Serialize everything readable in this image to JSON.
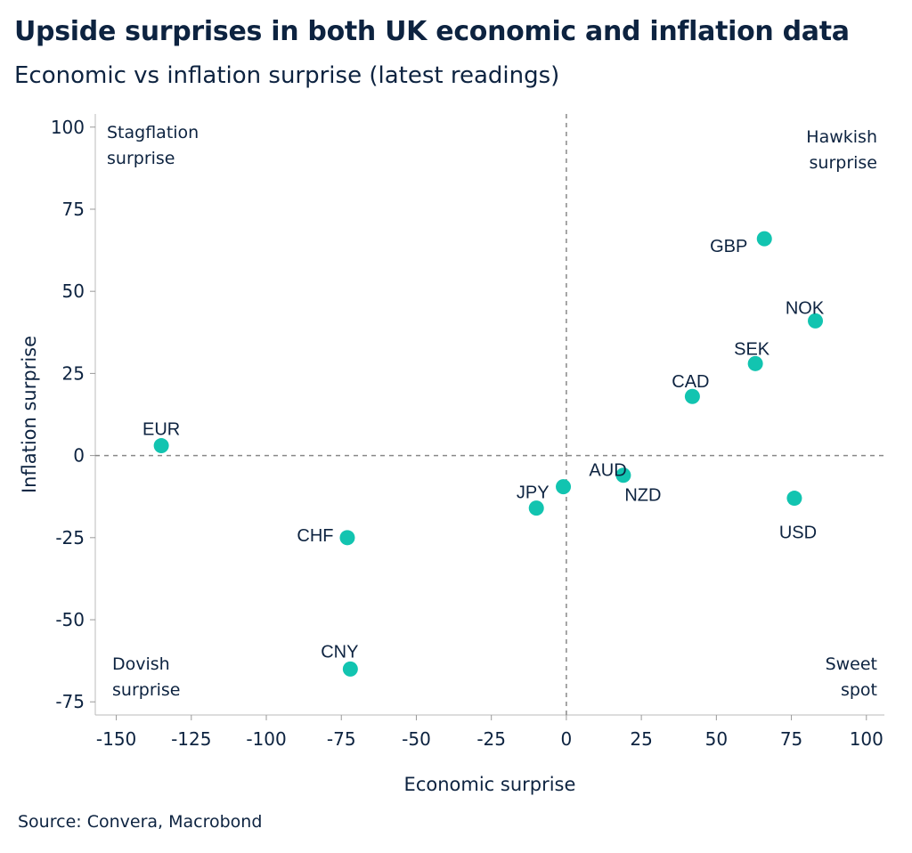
{
  "title": "Upside surprises in both UK economic and inflation data",
  "subtitle": "Economic vs inflation surprise (latest readings)",
  "source": "Source: Convera, Macrobond",
  "chart_data": {
    "type": "scatter",
    "title": "Upside surprises in both UK economic and inflation data",
    "subtitle": "Economic vs inflation surprise (latest readings)",
    "xlabel": "Economic surprise",
    "ylabel": "Inflation surprise",
    "xlim": [
      -157,
      106
    ],
    "ylim": [
      -79,
      104
    ],
    "xticks": [
      -150,
      -125,
      -100,
      -75,
      -50,
      -25,
      0,
      25,
      50,
      75,
      100
    ],
    "yticks": [
      -75,
      -50,
      -25,
      0,
      25,
      50,
      75,
      100
    ],
    "grid": false,
    "reference_lines": {
      "x": 0,
      "y": 0
    },
    "point_color": "#12c4b0",
    "quadrant_labels": [
      {
        "lines": [
          "Stagflation",
          "surprise"
        ],
        "position": "top-left"
      },
      {
        "lines": [
          "Hawkish",
          "surprise"
        ],
        "position": "top-right"
      },
      {
        "lines": [
          "Dovish",
          "surprise"
        ],
        "position": "bottom-left"
      },
      {
        "lines": [
          "Sweet",
          "spot"
        ],
        "position": "bottom-right"
      }
    ],
    "points": [
      {
        "label": "GBP",
        "x": 66,
        "y": 66
      },
      {
        "label": "NOK",
        "x": 83,
        "y": 41
      },
      {
        "label": "SEK",
        "x": 63,
        "y": 28
      },
      {
        "label": "CAD",
        "x": 42,
        "y": 18
      },
      {
        "label": "EUR",
        "x": -135,
        "y": 3
      },
      {
        "label": "AUD",
        "x": -1,
        "y": -9.5
      },
      {
        "label": "NZD",
        "x": 19,
        "y": -6
      },
      {
        "label": "JPY",
        "x": -10,
        "y": -16
      },
      {
        "label": "USD",
        "x": 76,
        "y": -13
      },
      {
        "label": "CHF",
        "x": -73,
        "y": -25
      },
      {
        "label": "CNY",
        "x": -72,
        "y": -65
      }
    ]
  }
}
